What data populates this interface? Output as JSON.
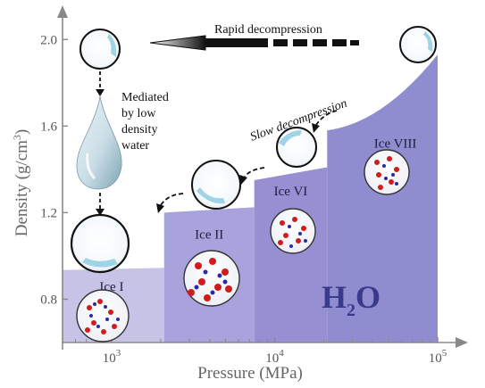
{
  "chart_data": {
    "type": "area",
    "xlabel": "Pressure (MPa)",
    "ylabel_parts": [
      "Density (g/cm",
      "3",
      ")"
    ],
    "x_scale": "log",
    "xlim": [
      500,
      100000
    ],
    "ylim": [
      0.6,
      2.1
    ],
    "x_ticks": [
      {
        "value": 1000,
        "base": "10",
        "exp": "3"
      },
      {
        "value": 10000,
        "base": "10",
        "exp": "4"
      },
      {
        "value": 100000,
        "base": "10",
        "exp": "5"
      }
    ],
    "y_ticks": [
      {
        "value": 0.8,
        "label": "0.8"
      },
      {
        "value": 1.2,
        "label": "1.2"
      },
      {
        "value": 1.6,
        "label": "1.6"
      },
      {
        "value": 2.0,
        "label": "2.0"
      }
    ],
    "phases": [
      {
        "name": "Ice I",
        "p_start": 500,
        "p_end": 2100,
        "density_start": 0.935,
        "density_end": 0.945,
        "color": "#c7c3e6"
      },
      {
        "name": "Ice II",
        "p_start": 2100,
        "p_end": 7500,
        "density_start": 1.2,
        "density_end": 1.225,
        "color": "#a8a3dc"
      },
      {
        "name": "Ice VI",
        "p_start": 7500,
        "p_end": 21000,
        "density_start": 1.35,
        "density_end": 1.41,
        "color": "#9690d3"
      },
      {
        "name": "Ice VIII",
        "p_start": 21000,
        "p_end": 100000,
        "density_start": 1.58,
        "density_end": 1.93,
        "color": "#8f8ccf"
      }
    ],
    "annotations": {
      "rapid": "Rapid decompression",
      "slow": "Slow decompression",
      "mediated": [
        "Mediated",
        "by low",
        "density",
        "water"
      ],
      "formula_base": "H",
      "formula_sub": "2",
      "formula_tail": "O"
    }
  }
}
